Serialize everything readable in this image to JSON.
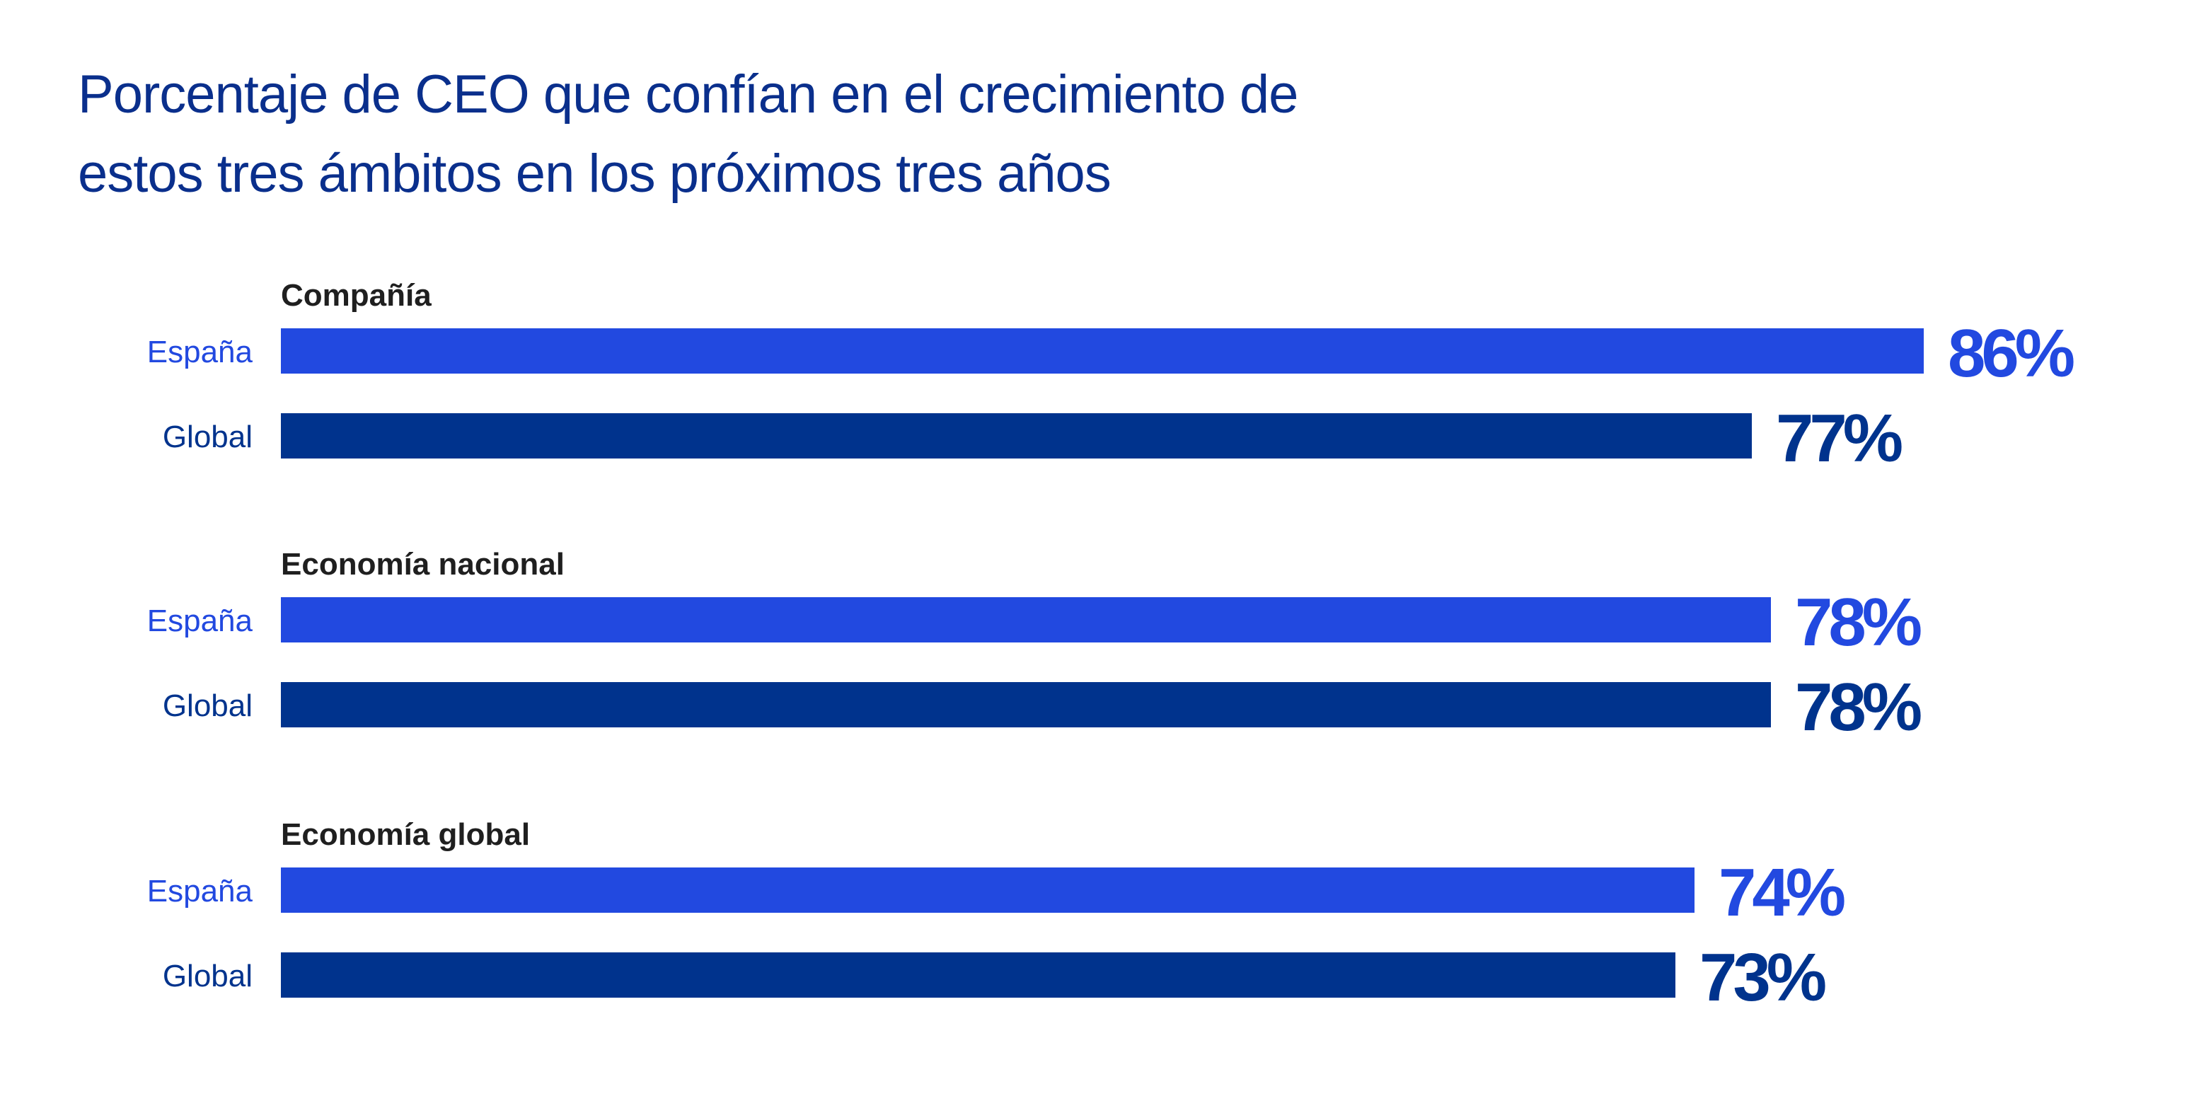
{
  "title": {
    "line1": "Porcentaje de CEO que confían en el crecimiento de",
    "line2": "estos tres ámbitos en los próximos tres años"
  },
  "colors": {
    "espana": "#2249e0",
    "global": "#00338d",
    "title": "#0a2f8c",
    "group_label": "#1f1f1f"
  },
  "chart_data": {
    "type": "bar",
    "orientation": "horizontal",
    "grid": false,
    "legend": "none",
    "xlim": [
      0,
      100
    ],
    "value_format": "{v}%",
    "groups": [
      {
        "label": "Compañía",
        "rows": [
          {
            "label": "España",
            "value": 86,
            "text": "86%",
            "series": "espana"
          },
          {
            "label": "Global",
            "value": 77,
            "text": "77%",
            "series": "global"
          }
        ]
      },
      {
        "label": "Economía nacional",
        "rows": [
          {
            "label": "España",
            "value": 78,
            "text": "78%",
            "series": "espana"
          },
          {
            "label": "Global",
            "value": 78,
            "text": "78%",
            "series": "global"
          }
        ]
      },
      {
        "label": "Economía global",
        "rows": [
          {
            "label": "España",
            "value": 74,
            "text": "74%",
            "series": "espana"
          },
          {
            "label": "Global",
            "value": 73,
            "text": "73%",
            "series": "global"
          }
        ]
      }
    ]
  }
}
